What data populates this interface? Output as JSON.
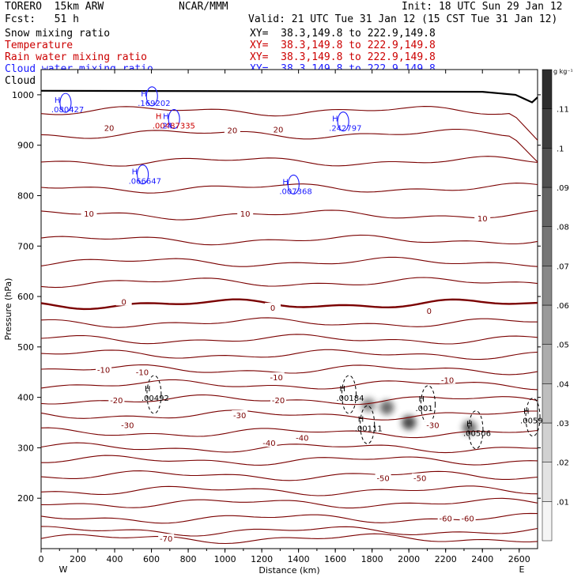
{
  "header": {
    "model": "TORERO  15km ARW",
    "center": "NCAR/MMM",
    "init": "Init: 18 UTC Sun 29 Jan 12",
    "fcst": "Fcst:   51 h",
    "valid": "Valid: 21 UTC Tue 31 Jan 12 (15 CST Tue 31 Jan 12)",
    "xy": "XY=  38.3,149.8 to 222.9,149.8"
  },
  "fields": [
    {
      "name": "Snow mixing ratio",
      "color": "#000000"
    },
    {
      "name": "Temperature",
      "color": "#cc0000"
    },
    {
      "name": "Rain water mixing ratio",
      "color": "#cc0000"
    },
    {
      "name": "Cloud water mixing ratio",
      "color": "#1a1aff"
    },
    {
      "name": "Cloud ice mixing ratio",
      "color": "#000000"
    }
  ],
  "chart_data": {
    "type": "cross-section",
    "xlabel": "Distance (km)",
    "ylabel": "Pressure (hPa)",
    "xlim": [
      0,
      2700
    ],
    "ylim": [
      1050,
      100
    ],
    "x_ticks": [
      0,
      200,
      400,
      600,
      800,
      1000,
      1200,
      1400,
      1600,
      1800,
      2000,
      2200,
      2400,
      2600
    ],
    "y_ticks": [
      200,
      300,
      400,
      500,
      600,
      700,
      800,
      900,
      1000
    ],
    "left_end": "W",
    "right_end": "E",
    "colorbar": {
      "unit": "g kg⁻¹",
      "ticks": [
        ".01",
        ".02",
        ".03",
        ".04",
        ".05",
        ".06",
        ".07",
        ".08",
        ".09",
        ".1",
        ".11"
      ]
    },
    "temperature_contours": [
      {
        "label": "-70",
        "x": 680,
        "p": 120
      },
      {
        "label": "-60",
        "x": 2200,
        "p": 160
      },
      {
        "label": "-60",
        "x": 2320,
        "p": 160
      },
      {
        "label": "-50",
        "x": 1860,
        "p": 240
      },
      {
        "label": "-50",
        "x": 2060,
        "p": 240
      },
      {
        "label": "-40",
        "x": 1240,
        "p": 310
      },
      {
        "label": "-40",
        "x": 1420,
        "p": 320
      },
      {
        "label": "-30",
        "x": 470,
        "p": 345
      },
      {
        "label": "-30",
        "x": 1080,
        "p": 365
      },
      {
        "label": "-30",
        "x": 2130,
        "p": 345
      },
      {
        "label": "-20",
        "x": 410,
        "p": 395
      },
      {
        "label": "-20",
        "x": 1290,
        "p": 395
      },
      {
        "label": "-10",
        "x": 340,
        "p": 455
      },
      {
        "label": "-10",
        "x": 550,
        "p": 450
      },
      {
        "label": "-10",
        "x": 1280,
        "p": 440
      },
      {
        "label": "-10",
        "x": 2210,
        "p": 435
      },
      {
        "label": "0",
        "x": 450,
        "p": 590
      },
      {
        "label": "0",
        "x": 1260,
        "p": 578
      },
      {
        "label": "0",
        "x": 2110,
        "p": 572
      },
      {
        "label": "10",
        "x": 260,
        "p": 765
      },
      {
        "label": "10",
        "x": 1110,
        "p": 765
      },
      {
        "label": "10",
        "x": 2400,
        "p": 755
      },
      {
        "label": "20",
        "x": 370,
        "p": 935
      },
      {
        "label": "20",
        "x": 1040,
        "p": 930
      },
      {
        "label": "20",
        "x": 1290,
        "p": 932
      }
    ],
    "snow_maxima": [
      {
        "label": ".00492",
        "x": 580,
        "p": 390
      },
      {
        "label": ".00184",
        "x": 1640,
        "p": 390
      },
      {
        "label": ".00111",
        "x": 1740,
        "p": 330
      },
      {
        "label": ".001",
        "x": 2070,
        "p": 370
      },
      {
        "label": ".00506",
        "x": 2330,
        "p": 320
      },
      {
        "label": ".0059",
        "x": 2640,
        "p": 345
      }
    ],
    "rain_maxima": [
      {
        "label": ".00487335",
        "x": 640,
        "p": 930
      }
    ],
    "cloud_water_maxima": [
      {
        "label": ".066647",
        "x": 510,
        "p": 820
      },
      {
        "label": ".007368",
        "x": 1330,
        "p": 800
      },
      {
        "label": ".242797",
        "x": 1600,
        "p": 925
      },
      {
        "label": ".169202",
        "x": 560,
        "p": 975
      },
      {
        "label": ".080427",
        "x": 90,
        "p": 962
      },
      {
        "label": ".24",
        "x": 680,
        "p": 930
      }
    ],
    "precip_columns": [
      {
        "x": 1780,
        "p_top": 300,
        "p_bottom": 470,
        "value": 0.07
      },
      {
        "x": 1880,
        "p_top": 290,
        "p_bottom": 470,
        "value": 0.09
      },
      {
        "x": 2000,
        "p_top": 260,
        "p_bottom": 440,
        "value": 0.11
      },
      {
        "x": 2330,
        "p_top": 280,
        "p_bottom": 400,
        "value": 0.09
      }
    ],
    "terrain": [
      {
        "x": 0,
        "p": 1008
      },
      {
        "x": 2400,
        "p": 1006
      },
      {
        "x": 2580,
        "p": 1000
      },
      {
        "x": 2640,
        "p": 990
      },
      {
        "x": 2670,
        "p": 985
      },
      {
        "x": 2700,
        "p": 995
      }
    ]
  }
}
